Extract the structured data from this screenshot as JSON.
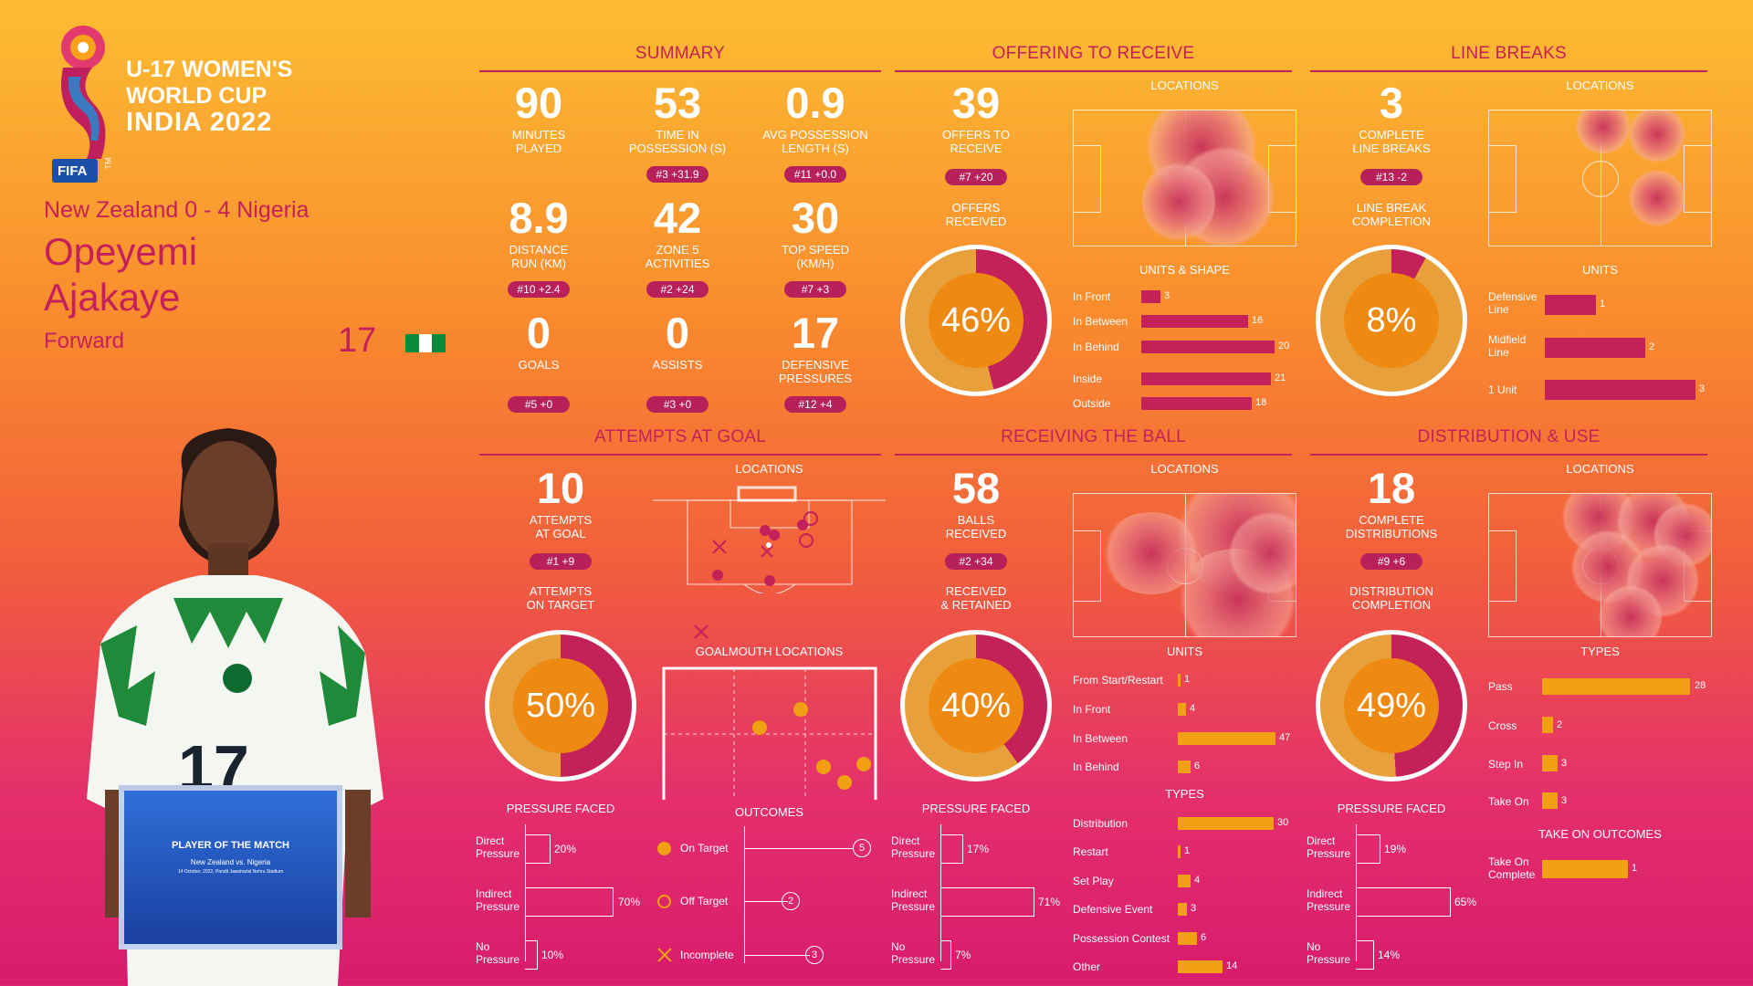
{
  "event": {
    "logo_text": "FIFA",
    "line1": "U-17 WOMEN'S",
    "line2": "WORLD CUP",
    "line3": "INDIA 2022",
    "tm": "TM"
  },
  "match": "New Zealand 0 - 4 Nigeria",
  "player": {
    "first": "Opeyemi",
    "last": "Ajakaye",
    "position": "Forward",
    "number": "17"
  },
  "board": {
    "title": "PLAYER OF THE MATCH",
    "match": "New Zealand vs. Nigeria",
    "date": "14 October, 2022, Pandit Jawaharlal Nehru Stadium"
  },
  "colors": {
    "magenta": "#c4205a",
    "orange": "#f0a012",
    "dark_pink": "#b8205a"
  },
  "summary": {
    "title": "SUMMARY",
    "stats": [
      {
        "num": "90",
        "l1": "MINUTES",
        "l2": "PLAYED",
        "pill": ""
      },
      {
        "num": "53",
        "l1": "TIME IN",
        "l2": "POSSESSION (s)",
        "pill": "#3 +31.9"
      },
      {
        "num": "0.9",
        "l1": "AVG POSSESSION",
        "l2": "LENGTH (s)",
        "pill": "#11 +0.0"
      },
      {
        "num": "8.9",
        "l1": "DISTANCE",
        "l2": "RUN (KM)",
        "pill": "#10 +2.4"
      },
      {
        "num": "42",
        "l1": "ZONE 5",
        "l2": "ACTIVITIES",
        "pill": "#2 +24"
      },
      {
        "num": "30",
        "l1": "TOP SPEED",
        "l2": "(KM/H)",
        "pill": "#7 +3"
      },
      {
        "num": "0",
        "l1": "GOALS",
        "l2": "",
        "pill": "#5 +0"
      },
      {
        "num": "0",
        "l1": "ASSISTS",
        "l2": "",
        "pill": "#3 +0"
      },
      {
        "num": "17",
        "l1": "DEFENSIVE",
        "l2": "PRESSURES",
        "pill": "#12 +4"
      }
    ]
  },
  "offering": {
    "title": "OFFERING TO RECEIVE",
    "num": "39",
    "l1": "OFFERS TO",
    "l2": "RECEIVE",
    "pill": "#7 +20",
    "sub1": "OFFERS",
    "sub2": "RECEIVED",
    "pct": "46%",
    "pct_value": 46,
    "locations": "LOCATIONS",
    "units_title": "UNITS & SHAPE",
    "bars": [
      {
        "label": "In Front",
        "value": 3
      },
      {
        "label": "In Between",
        "value": 16
      },
      {
        "label": "In Behind",
        "value": 20
      },
      {
        "label": "Inside",
        "value": 21
      },
      {
        "label": "Outside",
        "value": 18
      }
    ]
  },
  "linebreaks": {
    "title": "LINE BREAKS",
    "num": "3",
    "l1": "COMPLETE",
    "l2": "LINE BREAKS",
    "pill": "#13 -2",
    "sub1": "LINE BREAK",
    "sub2": "COMPLETION",
    "pct": "8%",
    "pct_value": 8,
    "locations": "LOCATIONS",
    "units_title": "UNITS",
    "bars": [
      {
        "l1": "Defensive",
        "l2": "Line",
        "value": 1
      },
      {
        "l1": "Midfield",
        "l2": "Line",
        "value": 2
      },
      {
        "l1": "1 Unit",
        "l2": "",
        "value": 3
      }
    ]
  },
  "attempts": {
    "title": "ATTEMPTS AT GOAL",
    "num": "10",
    "l1": "ATTEMPTS",
    "l2": "AT GOAL",
    "pill": "#1 +9",
    "sub1": "ATTEMPTS",
    "sub2": "ON TARGET",
    "pct": "50%",
    "pct_value": 50,
    "locations": "LOCATIONS",
    "goalmouth": "GOALMOUTH LOCATIONS",
    "pressure_title": "PRESSURE FACED",
    "pressure": [
      {
        "l1": "Direct",
        "l2": "Pressure",
        "value": "20%",
        "v": 20
      },
      {
        "l1": "Indirect",
        "l2": "Pressure",
        "value": "70%",
        "v": 70
      },
      {
        "l1": "No",
        "l2": "Pressure",
        "value": "10%",
        "v": 10
      }
    ],
    "outcomes_title": "OUTCOMES",
    "outcomes": [
      {
        "label": "On Target",
        "value": "5"
      },
      {
        "label": "Off Target",
        "value": "2"
      },
      {
        "label": "Incomplete",
        "value": "3"
      }
    ]
  },
  "receiving": {
    "title": "RECEIVING THE BALL",
    "num": "58",
    "l1": "BALLS",
    "l2": "RECEIVED",
    "pill": "#2 +34",
    "sub1": "RECEIVED",
    "sub2": "& RETAINED",
    "pct": "40%",
    "pct_value": 40,
    "locations": "LOCATIONS",
    "units_title": "UNITS",
    "units": [
      {
        "label": "From Start/Restart",
        "value": 1
      },
      {
        "label": "In Front",
        "value": 4
      },
      {
        "label": "In Between",
        "value": 47
      },
      {
        "label": "In Behind",
        "value": 6
      }
    ],
    "types_title": "TYPES",
    "types": [
      {
        "label": "Distribution",
        "value": 30
      },
      {
        "label": "Restart",
        "value": 1
      },
      {
        "label": "Set Play",
        "value": 4
      },
      {
        "label": "Defensive Event",
        "value": 3
      },
      {
        "label": "Possession Contest",
        "value": 6
      },
      {
        "label": "Other",
        "value": 14
      }
    ],
    "pressure_title": "PRESSURE FACED",
    "pressure": [
      {
        "l1": "Direct",
        "l2": "Pressure",
        "value": "17%",
        "v": 17
      },
      {
        "l1": "Indirect",
        "l2": "Pressure",
        "value": "71%",
        "v": 71
      },
      {
        "l1": "No",
        "l2": "Pressure",
        "value": "7%",
        "v": 7
      }
    ]
  },
  "distribution": {
    "title": "DISTRIBUTION & USE",
    "num": "18",
    "l1": "COMPLETE",
    "l2": "DISTRIBUTIONS",
    "pill": "#9 +6",
    "sub1": "DISTRIBUTION",
    "sub2": "COMPLETION",
    "pct": "49%",
    "pct_value": 49,
    "locations": "LOCATIONS",
    "types_title": "TYPES",
    "types": [
      {
        "label": "Pass",
        "value": 28
      },
      {
        "label": "Cross",
        "value": 2
      },
      {
        "label": "Step In",
        "value": 3
      },
      {
        "label": "Take On",
        "value": 3
      }
    ],
    "takeon_title": "TAKE ON OUTCOMES",
    "takeon": [
      {
        "l1": "Take On",
        "l2": "Complete",
        "value": 1
      }
    ],
    "pressure_title": "PRESSURE FACED",
    "pressure": [
      {
        "l1": "Direct",
        "l2": "Pressure",
        "value": "19%",
        "v": 19
      },
      {
        "l1": "Indirect",
        "l2": "Pressure",
        "value": "65%",
        "v": 65
      },
      {
        "l1": "No",
        "l2": "Pressure",
        "value": "14%",
        "v": 14
      }
    ]
  }
}
